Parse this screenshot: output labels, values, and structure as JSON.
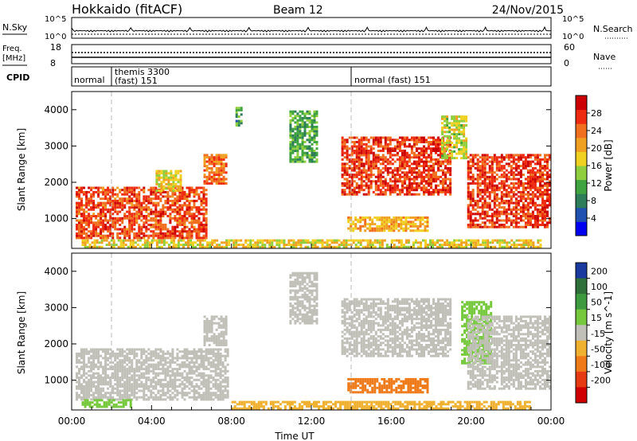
{
  "header": {
    "title": "Hokkaido (fitACF)",
    "beam": "Beam 12",
    "date": "24/Nov/2015"
  },
  "nsky": {
    "label": "N.Sky",
    "tick_high": "10^5",
    "tick_low": "10^0",
    "right_tick_high": "10^5",
    "right_tick_low": "10^0",
    "right_label": "N.Search"
  },
  "freq": {
    "label_line1": "Freq.",
    "label_line2": "[MHz]",
    "tick_high": "18",
    "tick_low": "8",
    "right_tick_high": "60",
    "right_tick_low": "0",
    "right_label": "Nave"
  },
  "cpid": {
    "label": "CPID",
    "segments": [
      {
        "text": "normal",
        "start_h": 0
      },
      {
        "text": "themis 3300",
        "text2": "(fast) 151",
        "start_h": 2
      },
      {
        "text": "normal (fast) 151",
        "start_h": 14
      }
    ]
  },
  "time_axis": {
    "ticks": [
      "00:00",
      "04:00",
      "08:00",
      "12:00",
      "16:00",
      "20:00",
      "00:00"
    ],
    "label": "Time UT"
  },
  "colors": {
    "power_scale": [
      "#0000f0",
      "#2050b0",
      "#2e7d5a",
      "#3fa33f",
      "#8fcf3f",
      "#f0d020",
      "#f0a020",
      "#f07020",
      "#ee2a10",
      "#cc0000"
    ],
    "velocity_scale": [
      "#1a3aa0",
      "#2f6f3a",
      "#3e9a3e",
      "#76c83c",
      "#c0c0b8",
      "#f0b030",
      "#ef7a1a",
      "#e53a12",
      "#d00000"
    ]
  },
  "chart_data": [
    {
      "type": "heatmap",
      "name": "Power",
      "ylabel": "Slant Range [km]",
      "xlabel": "Time UT",
      "ylim": [
        180,
        4500
      ],
      "y_ticks": [
        1000,
        2000,
        3000,
        4000
      ],
      "x_range_hours": [
        0,
        24
      ],
      "colorbar": {
        "label": "Power [dB]",
        "ticks": [
          "4",
          "8",
          "12",
          "16",
          "20",
          "24",
          "28"
        ],
        "range": [
          0,
          32
        ]
      },
      "regions": [
        {
          "t0": 0.2,
          "t1": 6.7,
          "r0": 500,
          "r1": 1900,
          "level": 26
        },
        {
          "t0": 4.2,
          "t1": 5.5,
          "r0": 1800,
          "r1": 2400,
          "level": 18
        },
        {
          "t0": 6.6,
          "t1": 7.8,
          "r0": 2000,
          "r1": 2800,
          "level": 24
        },
        {
          "t0": 8.2,
          "t1": 8.5,
          "r0": 3600,
          "r1": 4100,
          "level": 10
        },
        {
          "t0": 10.9,
          "t1": 12.3,
          "r0": 2600,
          "r1": 4000,
          "level": 12
        },
        {
          "t0": 13.5,
          "t1": 19.0,
          "r0": 1700,
          "r1": 3300,
          "level": 27
        },
        {
          "t0": 18.5,
          "t1": 19.8,
          "r0": 2700,
          "r1": 3900,
          "level": 16
        },
        {
          "t0": 19.8,
          "t1": 24.0,
          "r0": 800,
          "r1": 2800,
          "level": 27
        },
        {
          "t0": 13.8,
          "t1": 17.8,
          "r0": 700,
          "r1": 1100,
          "level": 20
        },
        {
          "t0": 0.5,
          "t1": 23.5,
          "r0": 250,
          "r1": 450,
          "level": 18
        }
      ]
    },
    {
      "type": "heatmap",
      "name": "Velocity",
      "ylabel": "Slant Range [km]",
      "xlabel": "Time UT",
      "ylim": [
        180,
        4500
      ],
      "y_ticks": [
        1000,
        2000,
        3000,
        4000
      ],
      "x_range_hours": [
        0,
        24
      ],
      "colorbar": {
        "label": "Velocity [m s^-1]",
        "ticks": [
          "200",
          "100",
          "50",
          "15",
          "-15",
          "-50",
          "-100",
          "-200"
        ],
        "range": [
          -250,
          250
        ]
      },
      "regions": [
        {
          "t0": 0.2,
          "t1": 7.8,
          "r0": 500,
          "r1": 1900,
          "level": 0
        },
        {
          "t0": 6.6,
          "t1": 7.8,
          "r0": 2000,
          "r1": 2800,
          "level": 0
        },
        {
          "t0": 10.9,
          "t1": 12.3,
          "r0": 2600,
          "r1": 4000,
          "level": 0
        },
        {
          "t0": 13.5,
          "t1": 19.0,
          "r0": 1700,
          "r1": 3300,
          "level": 0
        },
        {
          "t0": 19.5,
          "t1": 21.0,
          "r0": 1500,
          "r1": 3200,
          "level": 30
        },
        {
          "t0": 19.8,
          "t1": 24.0,
          "r0": 800,
          "r1": 2800,
          "level": 0
        },
        {
          "t0": 13.8,
          "t1": 17.8,
          "r0": 700,
          "r1": 1100,
          "level": -60
        },
        {
          "t0": 8.0,
          "t1": 23.0,
          "r0": 250,
          "r1": 450,
          "level": -40
        },
        {
          "t0": 0.5,
          "t1": 3.0,
          "r0": 300,
          "r1": 500,
          "level": 30
        }
      ]
    }
  ]
}
